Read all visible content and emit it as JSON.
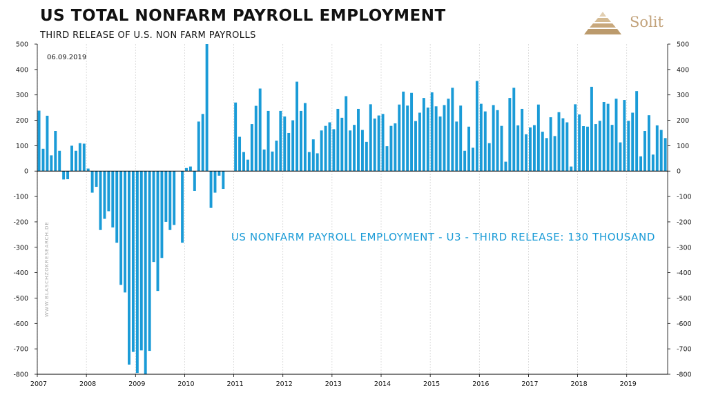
{
  "header": {
    "title": "US TOTAL NONFARM PAYROLL EMPLOYMENT",
    "subtitle": "THIRD RELEASE OF U.S. NON FARM PAYROLLS"
  },
  "logo": {
    "text": "Solit",
    "color": "#c2a27a"
  },
  "watermark": "WWW.BLASCHZOKRESEARCH.DE",
  "colors": {
    "bar": "#1a9bd7",
    "annotation": "#1a9bd7",
    "grid": "#cfcfcf"
  },
  "chart_data": {
    "type": "bar",
    "date_label": "06.09.2019",
    "annotation": "US NONFARM PAYROLL EMPLOYMENT - U3 - THIRD RELEASE: 130 THOUSAND",
    "ylim": [
      -800,
      500
    ],
    "y_ticks": [
      500,
      400,
      300,
      200,
      100,
      0,
      -100,
      -200,
      -300,
      -400,
      -500,
      -600,
      -700,
      -800
    ],
    "x_ticks": [
      "2007",
      "2008",
      "2009",
      "2010",
      "2011",
      "2012",
      "2013",
      "2014",
      "2015",
      "2016",
      "2017",
      "2018",
      "2019"
    ],
    "x_start": "2007-01",
    "x_end": "2019-08",
    "grid": "vertical",
    "series": [
      {
        "values": [
          238,
          88,
          218,
          62,
          158,
          80,
          -33,
          -32,
          100,
          80,
          110,
          108,
          10,
          -85,
          -62,
          -232,
          -188,
          -158,
          -222,
          -282,
          -448,
          -478,
          -762,
          -712,
          -795,
          -706,
          -800,
          -708,
          -358,
          -472,
          -342,
          -200,
          -232,
          -212,
          0,
          -282,
          12,
          18,
          -78,
          195,
          225,
          500,
          -145,
          -85,
          -18,
          -70,
          0,
          0,
          270,
          135,
          75,
          45,
          185,
          257,
          325,
          85,
          237,
          77,
          120,
          237,
          215,
          150,
          200,
          352,
          237,
          268,
          75,
          125,
          70,
          160,
          178,
          192,
          165,
          245,
          210,
          295,
          160,
          182,
          245,
          162,
          115,
          263,
          207,
          219,
          225,
          98,
          178,
          188,
          262,
          313,
          258,
          308,
          197,
          230,
          288,
          250,
          310,
          255,
          215,
          260,
          285,
          328,
          195,
          258,
          80,
          175,
          92,
          355,
          265,
          235,
          110,
          260,
          240,
          178,
          37,
          288,
          328,
          180,
          245,
          145,
          172,
          181,
          262,
          155,
          130,
          212,
          138,
          232,
          208,
          192,
          18,
          263,
          223,
          177,
          175,
          332,
          185,
          198,
          272,
          265,
          182,
          285,
          113,
          280,
          198,
          230,
          315,
          58,
          158,
          220,
          65,
          180,
          162,
          130
        ]
      }
    ]
  }
}
